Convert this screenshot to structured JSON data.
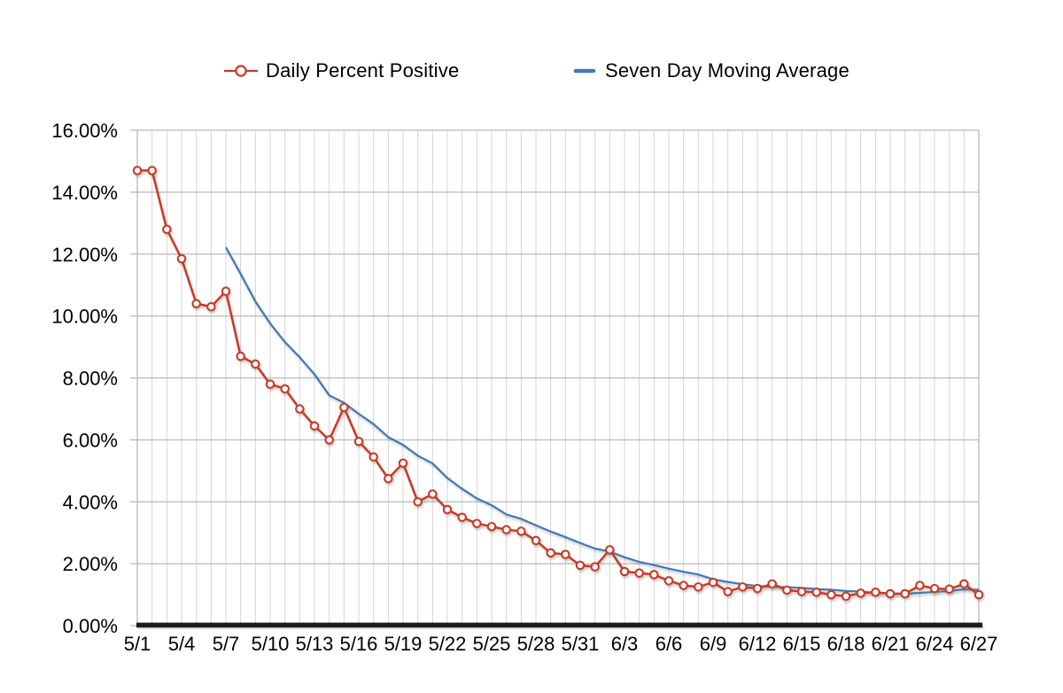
{
  "page": {
    "background": "#ffffff"
  },
  "chart_data": {
    "type": "line",
    "title": "",
    "xlabel": "",
    "ylabel": "",
    "ylim": [
      0,
      16
    ],
    "y_tick_step": 2,
    "grid": "on",
    "legend_position": "top",
    "x": [
      "5/1",
      "5/2",
      "5/3",
      "5/4",
      "5/5",
      "5/6",
      "5/7",
      "5/8",
      "5/9",
      "5/10",
      "5/11",
      "5/12",
      "5/13",
      "5/14",
      "5/15",
      "5/16",
      "5/17",
      "5/18",
      "5/19",
      "5/20",
      "5/21",
      "5/22",
      "5/23",
      "5/24",
      "5/25",
      "5/26",
      "5/27",
      "5/28",
      "5/29",
      "5/30",
      "5/31",
      "6/1",
      "6/2",
      "6/3",
      "6/4",
      "6/5",
      "6/6",
      "6/7",
      "6/8",
      "6/9",
      "6/10",
      "6/11",
      "6/12",
      "6/13",
      "6/14",
      "6/15",
      "6/16",
      "6/17",
      "6/18",
      "6/19",
      "6/20",
      "6/21",
      "6/22",
      "6/23",
      "6/24",
      "6/25",
      "6/26",
      "6/27"
    ],
    "x_tick_labels": [
      "5/1",
      "5/4",
      "5/7",
      "5/10",
      "5/13",
      "5/16",
      "5/19",
      "5/22",
      "5/25",
      "5/28",
      "5/31",
      "6/3",
      "6/6",
      "6/9",
      "6/12",
      "6/15",
      "6/18",
      "6/21",
      "6/24",
      "6/27"
    ],
    "x_tick_every": 3,
    "y_tick_labels": [
      "0.00%",
      "2.00%",
      "4.00%",
      "6.00%",
      "8.00%",
      "10.00%",
      "12.00%",
      "14.00%",
      "16.00%"
    ],
    "series": [
      {
        "name": "Daily Percent Positive",
        "color": "#cb3927",
        "marker": "open-circle",
        "values": [
          14.7,
          14.7,
          12.8,
          11.85,
          10.4,
          10.3,
          10.8,
          8.7,
          8.45,
          7.8,
          7.65,
          7.0,
          6.45,
          6.0,
          7.05,
          5.95,
          5.45,
          4.75,
          5.25,
          4.0,
          4.25,
          3.75,
          3.5,
          3.3,
          3.2,
          3.1,
          3.05,
          2.75,
          2.35,
          2.3,
          1.95,
          1.9,
          2.45,
          1.75,
          1.7,
          1.65,
          1.45,
          1.3,
          1.25,
          1.4,
          1.1,
          1.25,
          1.2,
          1.35,
          1.15,
          1.1,
          1.08,
          1.0,
          0.95,
          1.05,
          1.08,
          1.03,
          1.03,
          1.3,
          1.2,
          1.18,
          1.35,
          1.0
        ]
      },
      {
        "name": "Seven Day Moving Average",
        "color": "#4379b2",
        "marker": "none",
        "values": [
          null,
          null,
          null,
          null,
          null,
          null,
          12.22,
          11.36,
          10.47,
          9.76,
          9.16,
          8.67,
          8.12,
          7.44,
          7.2,
          6.84,
          6.51,
          6.09,
          5.84,
          5.49,
          5.24,
          4.77,
          4.42,
          4.11,
          3.89,
          3.59,
          3.45,
          3.24,
          3.04,
          2.86,
          2.67,
          2.49,
          2.39,
          2.21,
          2.06,
          1.96,
          1.84,
          1.74,
          1.65,
          1.5,
          1.41,
          1.34,
          1.28,
          1.26,
          1.24,
          1.22,
          1.18,
          1.16,
          1.12,
          1.1,
          1.06,
          1.04,
          1.03,
          1.06,
          1.09,
          1.12,
          1.17,
          1.16
        ]
      }
    ],
    "colors": {
      "grid_minor": "#d4d4d4",
      "grid_major": "#b9b9b9",
      "axis_line": "#1a1a1a",
      "text": "#000000",
      "marker_fill": "#ffffff"
    }
  }
}
